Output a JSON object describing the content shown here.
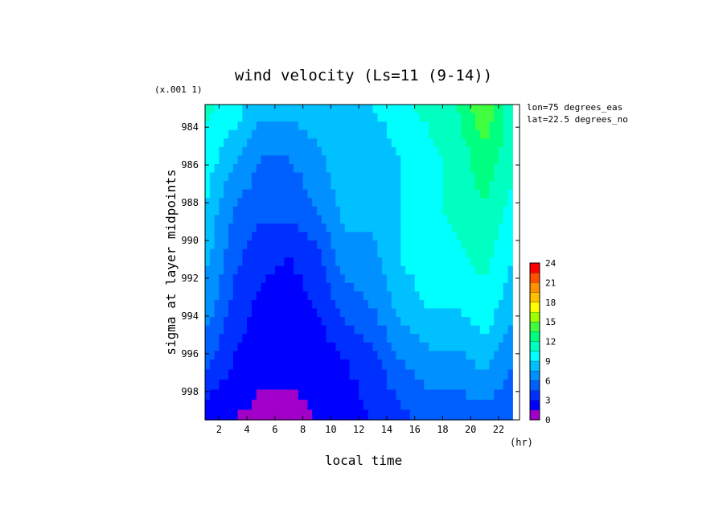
{
  "chart_data": {
    "type": "heatmap",
    "title": "wind velocity (Ls=11 (9-14))",
    "xlabel": "local time",
    "ylabel": "sigma at layer midpoints",
    "x_unit": "(hr)",
    "y_scale_note": "(x.001 1)",
    "annotations": [
      "lon=75 degrees_eas",
      "lat=22.5 degrees_no"
    ],
    "x_ticks": [
      "2",
      "4",
      "6",
      "8",
      "10",
      "12",
      "14",
      "16",
      "18",
      "20",
      "22"
    ],
    "x_tick_values": [
      2,
      4,
      6,
      8,
      10,
      12,
      14,
      16,
      18,
      20,
      22
    ],
    "y_ticks": [
      "984",
      "986",
      "988",
      "990",
      "992",
      "994",
      "996",
      "998"
    ],
    "y_tick_values": [
      984,
      986,
      988,
      990,
      992,
      994,
      996,
      998
    ],
    "xlim": [
      1,
      23.5
    ],
    "ylim": [
      999.5,
      982.8
    ],
    "x": [
      1,
      3,
      5,
      7,
      9,
      11,
      13,
      15,
      17,
      19,
      21,
      23
    ],
    "y": [
      982.8,
      985.5,
      988.2,
      990.9,
      993.6,
      996.3,
      999.5
    ],
    "z": [
      [
        11,
        10,
        8,
        8,
        9,
        9,
        9,
        10,
        11,
        12,
        15,
        11
      ],
      [
        10,
        8,
        6,
        6,
        7,
        9,
        8,
        9,
        10,
        11,
        13,
        11
      ],
      [
        9,
        6,
        5,
        5,
        6,
        8,
        8,
        9,
        10,
        11,
        12,
        10
      ],
      [
        8,
        5,
        3.5,
        3,
        4,
        7,
        7,
        9,
        10,
        10,
        11,
        9
      ],
      [
        7,
        4,
        2.5,
        2,
        3,
        5,
        6,
        8,
        9,
        9,
        10,
        8
      ],
      [
        5,
        3,
        2,
        2,
        2,
        3,
        4,
        6,
        7,
        7,
        8,
        6
      ],
      [
        2,
        1.5,
        1,
        1,
        1.5,
        2,
        3,
        4,
        5,
        5,
        5,
        5
      ]
    ],
    "colorbar": {
      "levels": [
        0,
        1.5,
        3,
        4.5,
        6,
        7.5,
        9,
        10.5,
        12,
        13.5,
        15,
        16.5,
        18,
        19.5,
        21,
        22.5,
        24
      ],
      "tick_labels": [
        "0",
        "3",
        "6",
        "9",
        "12",
        "15",
        "18",
        "21",
        "24"
      ],
      "tick_values": [
        0,
        3,
        6,
        9,
        12,
        15,
        18,
        21,
        24
      ],
      "colors": [
        "#a000c8",
        "#0000ff",
        "#0030ff",
        "#0060ff",
        "#0090ff",
        "#00c0ff",
        "#00ffff",
        "#00ffc0",
        "#00ff80",
        "#40ff40",
        "#a0ff00",
        "#ffff00",
        "#ffc000",
        "#ff9000",
        "#ff5000",
        "#ff0000"
      ]
    }
  }
}
